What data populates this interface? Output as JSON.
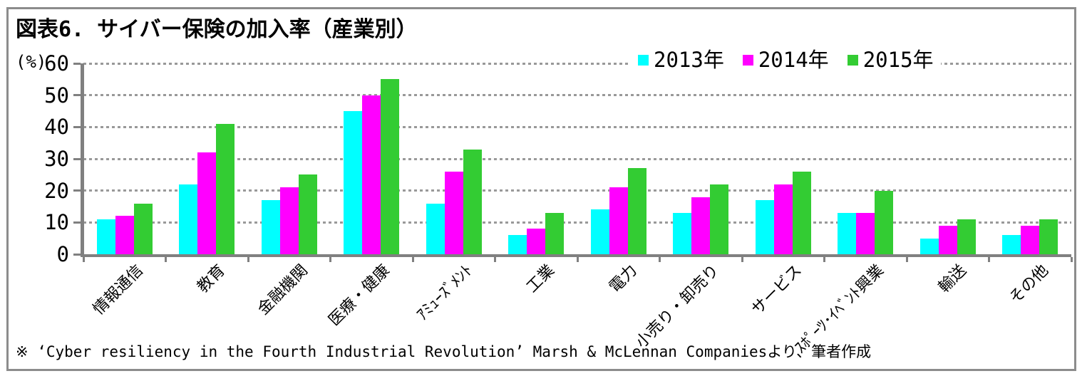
{
  "figure": {
    "title": "図表6. サイバー保険の加入率（産業別）",
    "footer": "※ ‘Cyber resiliency in the Fourth Industrial Revolution’ Marsh & McLennan Companiesより、筆者作成"
  },
  "chart_data": {
    "type": "bar",
    "title": "図表6. サイバー保険の加入率（産業別）",
    "unit_label": "(%)",
    "ylim": [
      0,
      60
    ],
    "yticks": [
      0,
      10,
      20,
      30,
      40,
      50,
      60
    ],
    "grid": "dotted-horizontal",
    "legend_position": "top-right",
    "categories": [
      "情報通信",
      "教育",
      "金融機関",
      "医療・健康",
      "ｱﾐｭｰｽﾞﾒﾝﾄ",
      "工業",
      "電力",
      "小売り・卸売り",
      "サービス",
      "ｽﾎﾟｰﾂ･ｲﾍﾞﾝﾄ興業",
      "輸送",
      "その他"
    ],
    "series": [
      {
        "name": "2013年",
        "color": "#00FFFF",
        "values": [
          11,
          22,
          17,
          45,
          16,
          6,
          14,
          13,
          17,
          13,
          5,
          6
        ]
      },
      {
        "name": "2014年",
        "color": "#FF00FF",
        "values": [
          12,
          32,
          21,
          50,
          26,
          8,
          21,
          18,
          22,
          13,
          9,
          9
        ]
      },
      {
        "name": "2015年",
        "color": "#33CC33",
        "values": [
          16,
          41,
          25,
          55,
          33,
          13,
          27,
          22,
          26,
          20,
          11,
          11
        ]
      }
    ],
    "axis_color": "#808080",
    "grid_color": "#999999",
    "frame_color": "#8C8C8C"
  }
}
